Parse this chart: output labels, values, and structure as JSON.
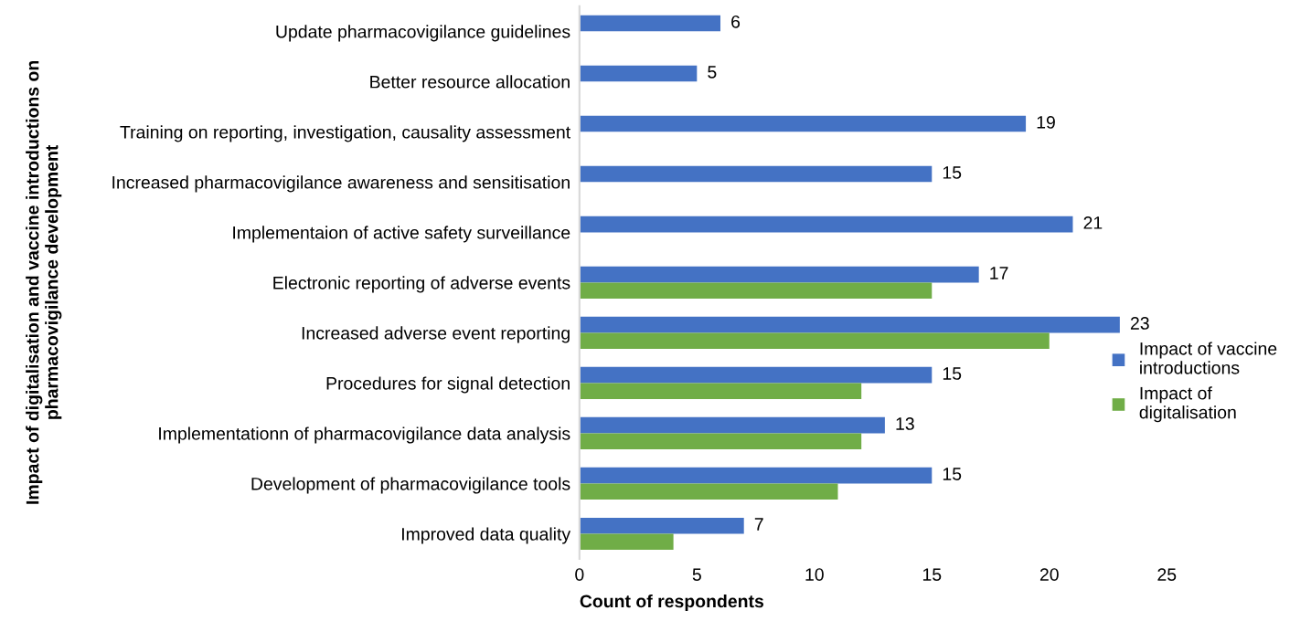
{
  "chart_data": {
    "type": "bar",
    "orientation": "horizontal",
    "xlabel": "Count of respondents",
    "ylabel": "Impact of digitalisation and vaccine introductions on\npharmacovigilance development",
    "categories": [
      "Update pharmacovigilance guidelines",
      "Better resource allocation",
      "Training on reporting, investigation, causality assessment",
      "Increased pharmacovigilance awareness and sensitisation",
      "Implementaion of active safety surveillance",
      "Electronic reporting of adverse events",
      "Increased adverse event reporting",
      "Procedures for signal detection",
      "Implementationn of pharmacovigilance data analysis",
      "Development of pharmacovigilance tools",
      "Improved data quality"
    ],
    "series": [
      {
        "name": "Impact of vaccine introductions",
        "color": "#4472c4",
        "values": [
          6,
          5,
          19,
          15,
          21,
          17,
          23,
          15,
          13,
          15,
          7
        ],
        "value_labels": [
          "6",
          "5",
          "19",
          "15",
          "21",
          "17",
          "23",
          "15",
          "13",
          "15",
          "7"
        ]
      },
      {
        "name": "Impact of digitalisation",
        "color": "#70ad47",
        "values": [
          null,
          null,
          null,
          null,
          null,
          15,
          20,
          12,
          12,
          11,
          4
        ]
      }
    ],
    "xlim": [
      0,
      25
    ],
    "xticks": [
      0,
      5,
      10,
      15,
      20,
      25
    ],
    "grid": false,
    "legend": "right"
  }
}
